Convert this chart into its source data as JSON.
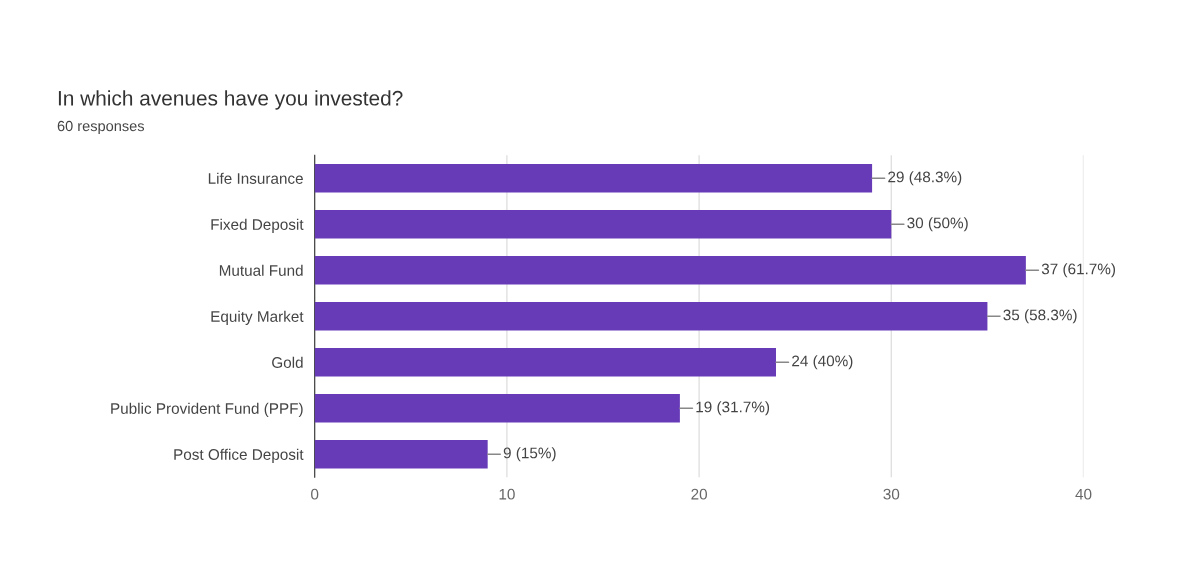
{
  "chart_data": {
    "type": "bar",
    "orientation": "horizontal",
    "title": "In which avenues have you invested?",
    "subtitle": "60 responses",
    "categories": [
      "Life Insurance",
      "Fixed Deposit",
      "Mutual Fund",
      "Equity Market",
      "Gold",
      "Public Provident Fund (PPF)",
      "Post Office Deposit"
    ],
    "values": [
      29,
      30,
      37,
      35,
      24,
      19,
      9
    ],
    "value_labels": [
      "29 (48.3%)",
      "30 (50%)",
      "37 (61.7%)",
      "35 (58.3%)",
      "24 (40%)",
      "19 (31.7%)",
      "9 (15%)"
    ],
    "color": "#673ab7",
    "xlim": [
      0,
      40
    ],
    "xticks": [
      0,
      10,
      20,
      30,
      40
    ],
    "grid": "x"
  }
}
